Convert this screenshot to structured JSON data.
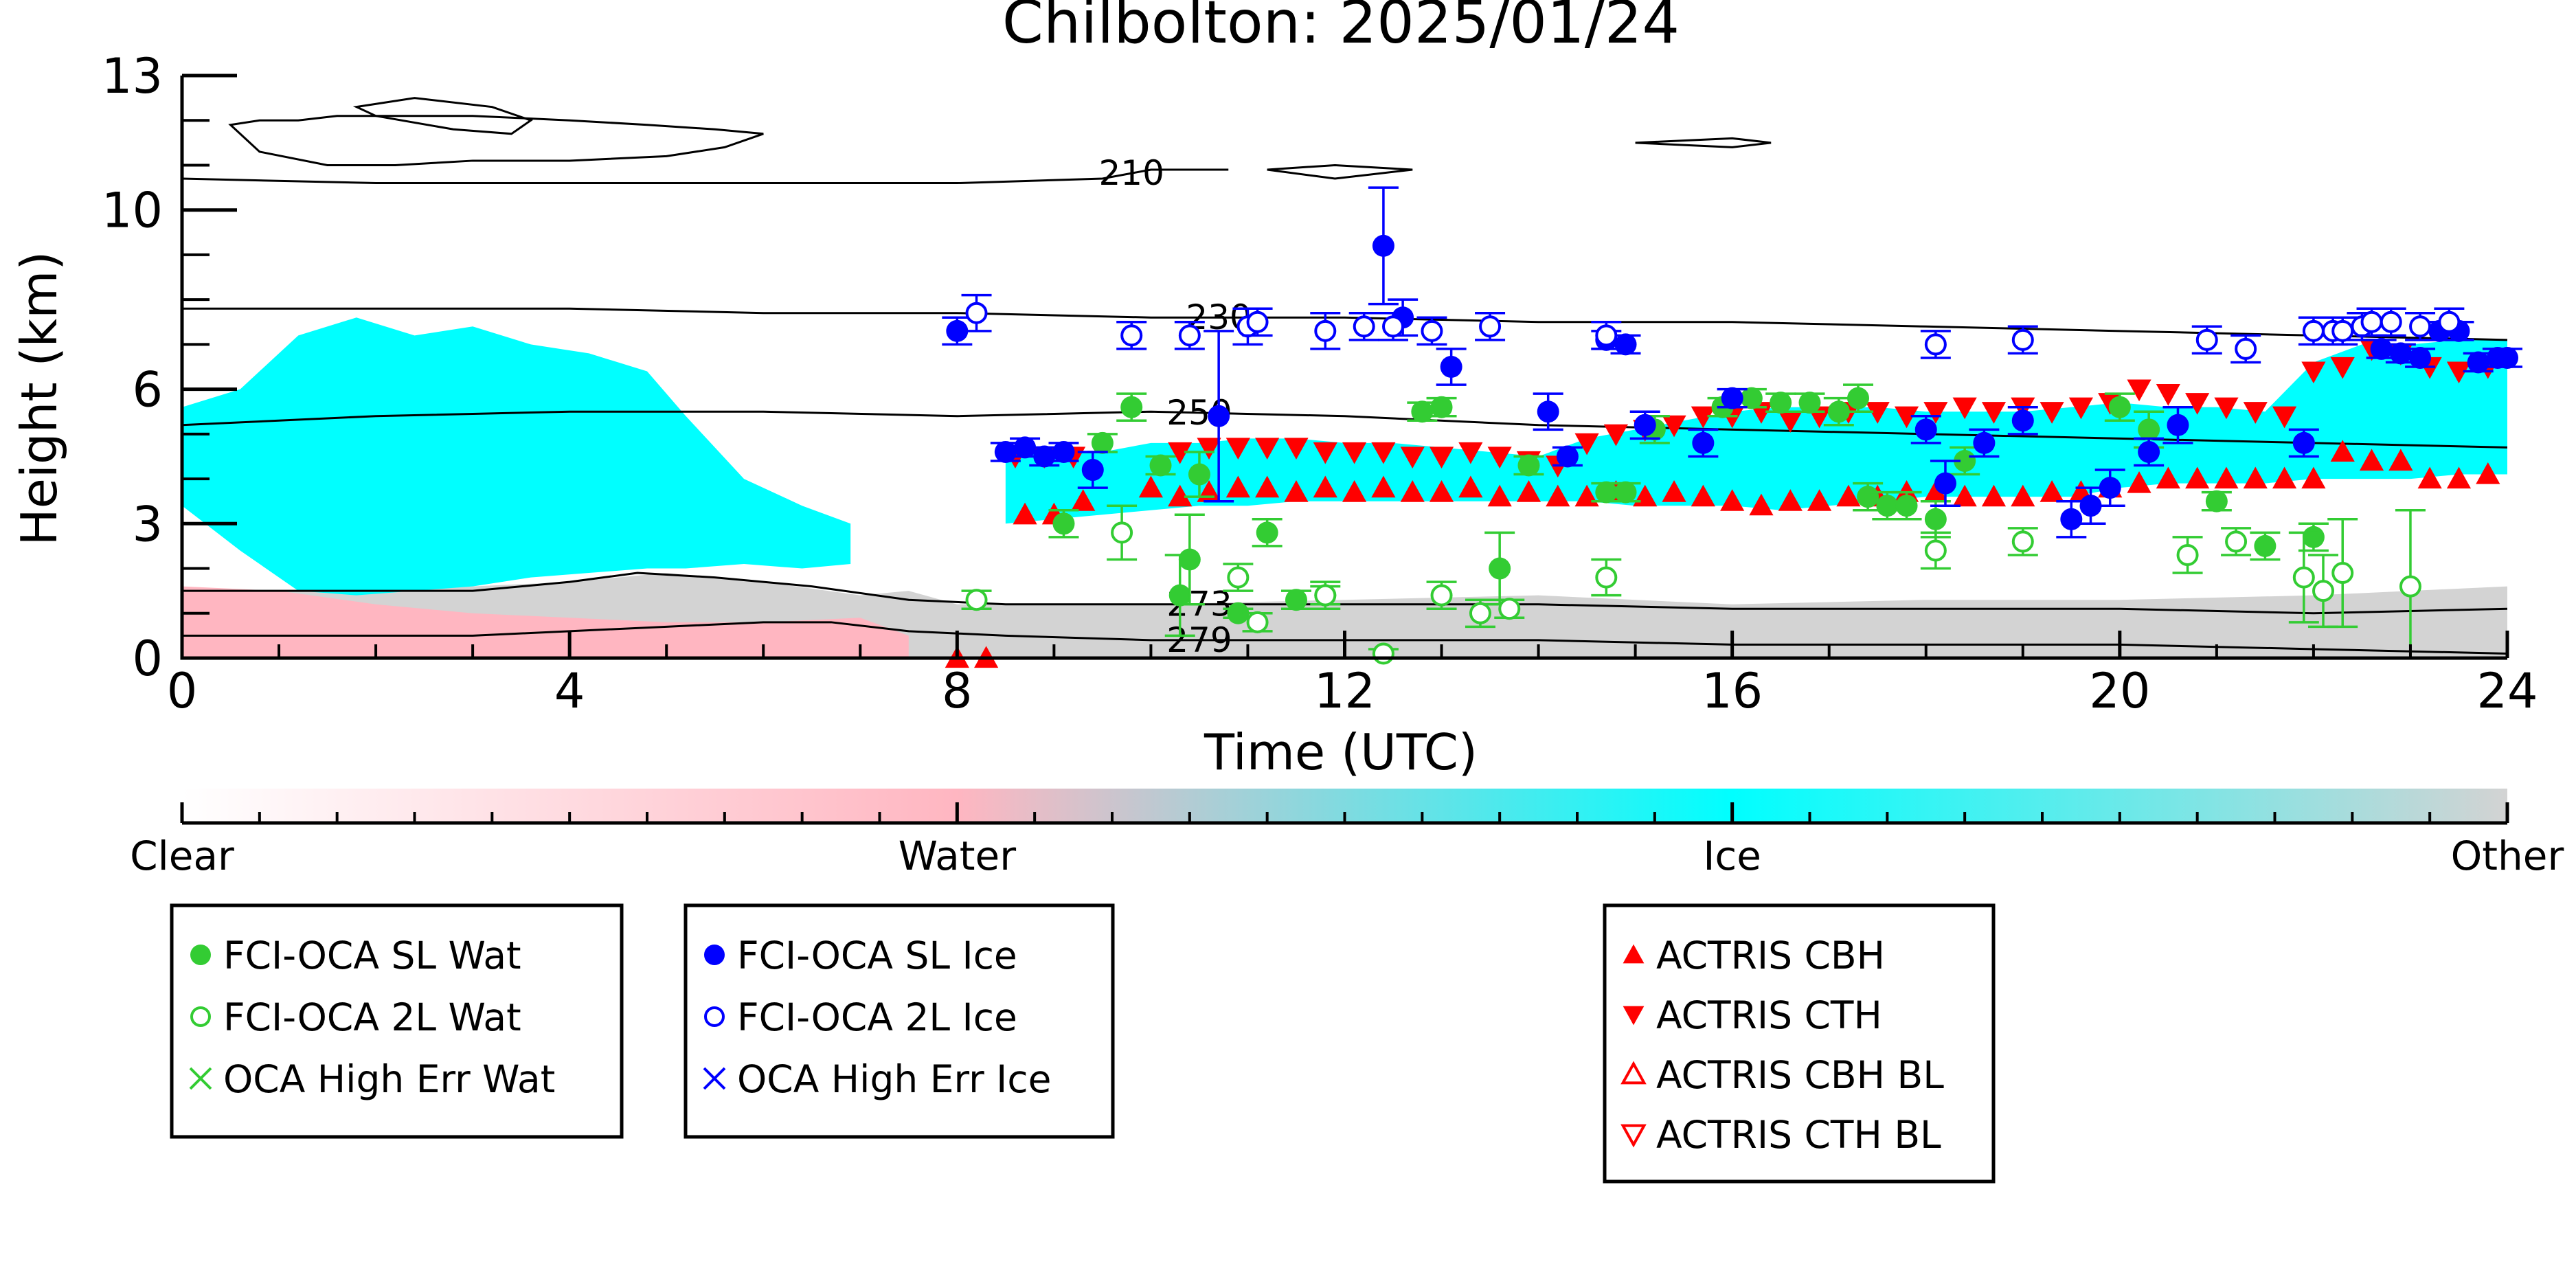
{
  "chart_data": {
    "type": "scatter",
    "title": "Chilbolton: 2025/01/24",
    "xlabel": "Time (UTC)",
    "ylabel": "Height (km)",
    "xlim": [
      0,
      24
    ],
    "ylim": [
      0,
      13
    ],
    "x_ticks": [
      0,
      4,
      8,
      12,
      16,
      20,
      24
    ],
    "y_ticks": [
      0,
      3,
      6,
      10,
      13
    ],
    "legend_location": "below plot",
    "background_classification": {
      "colorbar_labels": [
        "Clear",
        "Water",
        "Ice",
        "Other"
      ],
      "colors": {
        "clear": "#ffffff",
        "water": "#ffb6c1",
        "ice": "#00ffff",
        "other": "#d3d3d3"
      },
      "ice_regions": [
        {
          "x": [
            0.0,
            0.6,
            1.2,
            1.8,
            2.4,
            3.0,
            3.6,
            4.2,
            4.8,
            5.2,
            5.8,
            6.4,
            6.9
          ],
          "top": [
            5.6,
            6.0,
            7.2,
            7.6,
            7.2,
            7.4,
            7.0,
            6.8,
            6.4,
            5.4,
            4.0,
            3.4,
            3.0
          ],
          "base": [
            3.4,
            2.4,
            1.5,
            1.4,
            1.5,
            1.6,
            1.8,
            1.9,
            2.0,
            2.0,
            2.1,
            2.0,
            2.1
          ]
        },
        {
          "x": [
            8.5,
            9.0,
            9.5,
            10.0,
            10.5,
            11.0,
            11.5,
            12.0,
            12.5,
            13.0,
            13.5,
            14.0,
            14.5,
            15.0,
            15.5,
            16.0,
            16.5,
            17.0,
            17.5,
            18.0,
            18.5,
            19.0,
            19.5,
            20.0,
            20.5,
            21.0,
            21.5,
            22.0,
            22.5,
            23.0,
            23.5,
            24.0
          ],
          "top": [
            4.6,
            4.6,
            4.6,
            4.8,
            4.8,
            4.9,
            4.9,
            4.8,
            4.8,
            4.7,
            4.6,
            4.5,
            4.9,
            5.1,
            5.3,
            5.5,
            5.6,
            5.6,
            5.6,
            5.5,
            5.5,
            5.5,
            5.6,
            5.7,
            5.6,
            5.6,
            5.5,
            6.6,
            7.0,
            7.0,
            7.1,
            7.1
          ],
          "base": [
            3.0,
            3.1,
            3.2,
            3.3,
            3.4,
            3.4,
            3.5,
            3.5,
            3.5,
            3.5,
            3.5,
            3.5,
            3.5,
            3.4,
            3.4,
            3.4,
            3.3,
            3.4,
            3.5,
            3.6,
            3.6,
            3.6,
            3.6,
            3.8,
            3.9,
            3.9,
            3.9,
            4.0,
            4.0,
            4.0,
            4.1,
            4.1
          ]
        }
      ],
      "other_layer": {
        "x": [
          0.0,
          2.0,
          4.0,
          5.0,
          6.0,
          7.0,
          7.5,
          8.0,
          10.0,
          12.0,
          14.0,
          16.0,
          18.0,
          20.0,
          22.0,
          24.0
        ],
        "top": [
          1.5,
          1.5,
          1.7,
          1.9,
          1.7,
          1.4,
          1.5,
          1.2,
          1.2,
          1.3,
          1.4,
          1.2,
          1.3,
          1.3,
          1.4,
          1.6
        ]
      },
      "water_layer": {
        "x": [
          0.0,
          1.0,
          2.0,
          3.0,
          4.0,
          5.0,
          6.0,
          7.0,
          7.5
        ],
        "top": [
          1.6,
          1.5,
          1.2,
          1.0,
          0.9,
          0.8,
          0.8,
          0.9,
          0.5
        ]
      }
    },
    "isotherms": [
      {
        "label": "210",
        "label_x": 9.8,
        "x": [
          0,
          2,
          4,
          6,
          8,
          9.5,
          10,
          10.8
        ],
        "y": [
          10.7,
          10.6,
          10.6,
          10.6,
          10.6,
          10.7,
          10.9,
          10.9
        ]
      },
      {
        "label": "230",
        "label_x": 10.7,
        "x": [
          0,
          2,
          4,
          6,
          8,
          10,
          12,
          14,
          16,
          18,
          20,
          22,
          24
        ],
        "y": [
          7.8,
          7.8,
          7.8,
          7.7,
          7.7,
          7.6,
          7.6,
          7.5,
          7.5,
          7.4,
          7.3,
          7.2,
          7.1
        ]
      },
      {
        "label": "250",
        "label_x": 10.5,
        "x": [
          0,
          1,
          2,
          4,
          6,
          8,
          10,
          12,
          14,
          16,
          18,
          20,
          22,
          24
        ],
        "y": [
          5.2,
          5.3,
          5.4,
          5.5,
          5.5,
          5.4,
          5.5,
          5.4,
          5.2,
          5.1,
          5.0,
          4.9,
          4.8,
          4.7
        ]
      },
      {
        "label": "273",
        "label_x": 10.5,
        "x": [
          0,
          2,
          3,
          4,
          4.7,
          5.5,
          6.5,
          7.5,
          8.5,
          10,
          12,
          14,
          16,
          18,
          20,
          22,
          24
        ],
        "y": [
          1.5,
          1.5,
          1.5,
          1.7,
          1.9,
          1.8,
          1.6,
          1.3,
          1.2,
          1.2,
          1.2,
          1.2,
          1.1,
          1.1,
          1.1,
          1.0,
          1.1
        ]
      },
      {
        "label": "279",
        "label_x": 10.5,
        "x": [
          0,
          1,
          2,
          3,
          4,
          5,
          6,
          6.7,
          7.5,
          8.5,
          10,
          12,
          14,
          16,
          18,
          20,
          22,
          24
        ],
        "y": [
          0.5,
          0.5,
          0.5,
          0.5,
          0.6,
          0.7,
          0.8,
          0.8,
          0.6,
          0.5,
          0.4,
          0.4,
          0.4,
          0.3,
          0.3,
          0.3,
          0.2,
          0.1
        ]
      }
    ],
    "contours_high": [
      {
        "x": [
          0.5,
          0.8,
          1.5,
          2.2,
          3.0,
          4.0,
          5.0,
          5.6,
          6.0,
          5.5,
          4.8,
          4.0,
          3.0,
          2.2,
          1.6,
          1.2,
          0.8,
          0.5
        ],
        "y": [
          11.9,
          11.3,
          11.0,
          11.0,
          11.1,
          11.1,
          11.2,
          11.4,
          11.7,
          11.8,
          11.9,
          12.0,
          12.1,
          12.1,
          12.1,
          12.0,
          12.0,
          11.9
        ]
      },
      {
        "x": [
          1.8,
          2.4,
          3.2,
          3.6,
          3.4,
          2.8,
          2.0,
          1.8
        ],
        "y": [
          12.3,
          12.5,
          12.3,
          12.0,
          11.7,
          11.8,
          12.1,
          12.3
        ]
      },
      {
        "x": [
          11.2,
          11.9,
          12.7,
          11.9,
          11.2
        ],
        "y": [
          10.9,
          11.0,
          10.9,
          10.7,
          10.9
        ]
      },
      {
        "x": [
          15.0,
          16.0,
          16.4,
          16.0,
          15.0
        ],
        "y": [
          11.5,
          11.6,
          11.5,
          11.4,
          11.5
        ]
      }
    ],
    "series": [
      {
        "name": "FCI-OCA SL Wat",
        "marker": "circle-filled",
        "color": "#33cc33",
        "x": [
          9.1,
          9.5,
          9.8,
          10.1,
          10.3,
          10.4,
          10.5,
          10.9,
          11.2,
          11.5,
          11.8,
          12.8,
          13.0,
          13.6,
          13.9,
          14.7,
          14.9,
          15.2,
          15.9,
          16.2,
          16.5,
          16.8,
          17.1,
          17.3,
          17.4,
          17.6,
          17.8,
          18.1,
          18.4,
          20.0,
          20.3,
          21.0,
          21.5,
          22.0
        ],
        "y": [
          3.0,
          4.8,
          5.6,
          4.3,
          1.4,
          2.2,
          4.1,
          1.0,
          2.8,
          1.3,
          1.4,
          5.5,
          5.6,
          2.0,
          4.3,
          3.7,
          3.7,
          5.1,
          5.6,
          5.8,
          5.7,
          5.7,
          5.5,
          5.8,
          3.6,
          3.4,
          3.4,
          3.1,
          4.4,
          5.6,
          5.1,
          3.5,
          2.5,
          2.7
        ],
        "yerr": [
          0.3,
          0.2,
          0.3,
          0.2,
          0.9,
          1.0,
          0.5,
          0.1,
          0.3,
          0.2,
          0.2,
          0.2,
          0.2,
          0.8,
          0.2,
          0.2,
          0.2,
          0.3,
          0.2,
          0.2,
          0.2,
          0.2,
          0.3,
          0.3,
          0.3,
          0.3,
          0.3,
          0.4,
          0.3,
          0.3,
          0.4,
          0.2,
          0.3,
          0.3
        ]
      },
      {
        "name": "FCI-OCA 2L Wat",
        "marker": "circle-open",
        "color": "#33cc33",
        "x": [
          8.2,
          9.7,
          10.9,
          11.1,
          11.8,
          12.4,
          13.0,
          13.4,
          13.7,
          14.7,
          18.1,
          19.0,
          20.7,
          21.2,
          21.9,
          22.1,
          22.3,
          23.0
        ],
        "y": [
          1.3,
          2.8,
          1.8,
          0.8,
          1.4,
          0.1,
          1.4,
          1.0,
          1.1,
          1.8,
          2.4,
          2.6,
          2.3,
          2.6,
          1.8,
          1.5,
          1.9,
          1.6
        ],
        "yerr": [
          0.2,
          0.6,
          0.3,
          0.2,
          0.3,
          0.1,
          0.3,
          0.3,
          0.2,
          0.4,
          0.4,
          0.3,
          0.4,
          0.3,
          1.0,
          0.8,
          1.2,
          1.7
        ]
      },
      {
        "name": "OCA High Err Wat",
        "marker": "x",
        "color": "#33cc33",
        "x": [],
        "y": []
      },
      {
        "name": "FCI-OCA SL Ice",
        "marker": "circle-filled",
        "color": "#0000ff",
        "x": [
          8.0,
          8.5,
          8.7,
          8.9,
          9.1,
          9.4,
          10.7,
          12.4,
          12.6,
          13.1,
          14.1,
          14.3,
          14.7,
          14.9,
          15.1,
          15.7,
          16.0,
          18.0,
          18.2,
          18.6,
          19.0,
          19.5,
          19.7,
          19.9,
          20.3,
          20.6,
          21.9,
          22.7,
          22.9,
          23.1,
          23.3,
          23.5,
          23.7,
          23.9,
          24.0
        ],
        "y": [
          7.3,
          4.6,
          4.7,
          4.5,
          4.6,
          4.2,
          5.4,
          9.2,
          7.6,
          6.5,
          5.5,
          4.5,
          7.1,
          7.0,
          5.2,
          4.8,
          5.8,
          5.1,
          3.9,
          4.8,
          5.3,
          3.1,
          3.4,
          3.8,
          4.6,
          5.2,
          4.8,
          6.9,
          6.8,
          6.7,
          7.3,
          7.3,
          6.6,
          6.7,
          6.7
        ],
        "yerr": [
          0.3,
          0.2,
          0.2,
          0.2,
          0.2,
          0.4,
          1.9,
          1.3,
          0.4,
          0.4,
          0.4,
          0.2,
          0.2,
          0.2,
          0.3,
          0.3,
          0.2,
          0.3,
          0.5,
          0.3,
          0.3,
          0.4,
          0.4,
          0.4,
          0.3,
          0.4,
          0.3,
          0.2,
          0.2,
          0.2,
          0.2,
          0.2,
          0.2,
          0.2,
          0.2
        ]
      },
      {
        "name": "FCI-OCA 2L Ice",
        "marker": "circle-open",
        "color": "#0000ff",
        "x": [
          8.2,
          9.8,
          10.4,
          11.0,
          11.1,
          11.8,
          12.2,
          12.5,
          12.9,
          13.5,
          14.7,
          18.1,
          19.0,
          20.9,
          21.3,
          22.0,
          22.2,
          22.3,
          22.5,
          22.6,
          22.8,
          23.1,
          23.4
        ],
        "y": [
          7.7,
          7.2,
          7.2,
          7.4,
          7.5,
          7.3,
          7.4,
          7.4,
          7.3,
          7.4,
          7.2,
          7.0,
          7.1,
          7.1,
          6.9,
          7.3,
          7.3,
          7.3,
          7.4,
          7.5,
          7.5,
          7.4,
          7.5
        ],
        "yerr": [
          0.4,
          0.3,
          0.3,
          0.4,
          0.3,
          0.4,
          0.3,
          0.3,
          0.3,
          0.3,
          0.3,
          0.3,
          0.3,
          0.3,
          0.3,
          0.3,
          0.3,
          0.3,
          0.3,
          0.3,
          0.3,
          0.3,
          0.3
        ]
      },
      {
        "name": "OCA High Err Ice",
        "marker": "x",
        "color": "#0000ff",
        "x": [],
        "y": []
      },
      {
        "name": "ACTRIS CBH",
        "marker": "triangle-up-filled",
        "color": "#ff0000",
        "x": [
          8.0,
          8.3,
          8.7,
          9.0,
          9.3,
          10.0,
          10.3,
          10.6,
          10.9,
          11.2,
          11.5,
          11.8,
          12.1,
          12.4,
          12.7,
          13.0,
          13.3,
          13.6,
          13.9,
          14.2,
          14.5,
          14.8,
          15.1,
          15.4,
          15.7,
          16.0,
          16.3,
          16.6,
          16.9,
          17.2,
          17.5,
          17.8,
          18.1,
          18.4,
          18.7,
          19.0,
          19.3,
          19.6,
          19.9,
          20.2,
          20.5,
          20.8,
          21.1,
          21.4,
          21.7,
          22.0,
          22.3,
          22.6,
          22.9,
          23.2,
          23.5,
          23.8
        ],
        "y": [
          0.0,
          0.0,
          3.2,
          3.2,
          3.5,
          3.8,
          3.6,
          3.7,
          3.8,
          3.8,
          3.7,
          3.8,
          3.7,
          3.8,
          3.7,
          3.7,
          3.8,
          3.6,
          3.7,
          3.6,
          3.6,
          3.7,
          3.6,
          3.7,
          3.6,
          3.5,
          3.4,
          3.5,
          3.5,
          3.6,
          3.6,
          3.7,
          3.7,
          3.6,
          3.6,
          3.6,
          3.7,
          3.7,
          3.8,
          3.9,
          4.0,
          4.0,
          4.0,
          4.0,
          4.0,
          4.0,
          4.6,
          4.4,
          4.4,
          4.0,
          4.0,
          4.1
        ]
      },
      {
        "name": "ACTRIS CTH",
        "marker": "triangle-down-filled",
        "color": "#ff0000",
        "x": [
          8.6,
          8.9,
          9.2,
          10.3,
          10.6,
          10.9,
          11.2,
          11.5,
          11.8,
          12.1,
          12.4,
          12.7,
          13.0,
          13.3,
          13.6,
          13.9,
          14.2,
          14.5,
          14.8,
          15.1,
          15.4,
          15.7,
          16.0,
          16.3,
          16.6,
          16.9,
          17.2,
          17.5,
          17.8,
          18.1,
          18.4,
          18.7,
          19.0,
          19.3,
          19.6,
          19.9,
          20.2,
          20.5,
          20.8,
          21.1,
          21.4,
          21.7,
          22.0,
          22.3,
          22.6,
          22.9,
          23.2,
          23.5,
          23.8
        ],
        "y": [
          4.5,
          4.5,
          4.5,
          4.6,
          4.7,
          4.7,
          4.7,
          4.7,
          4.6,
          4.6,
          4.6,
          4.5,
          4.5,
          4.6,
          4.5,
          4.4,
          4.3,
          4.8,
          5.0,
          5.1,
          5.2,
          5.4,
          5.4,
          5.5,
          5.3,
          5.4,
          5.5,
          5.5,
          5.4,
          5.5,
          5.6,
          5.5,
          5.6,
          5.5,
          5.6,
          5.7,
          6.0,
          5.9,
          5.7,
          5.6,
          5.5,
          5.4,
          6.4,
          6.5,
          6.9,
          6.8,
          6.5,
          6.4,
          6.5
        ]
      },
      {
        "name": "ACTRIS CBH BL",
        "marker": "triangle-up-open",
        "color": "#ff0000",
        "x": [],
        "y": []
      },
      {
        "name": "ACTRIS CTH BL",
        "marker": "triangle-down-open",
        "color": "#ff0000",
        "x": [],
        "y": []
      }
    ]
  }
}
